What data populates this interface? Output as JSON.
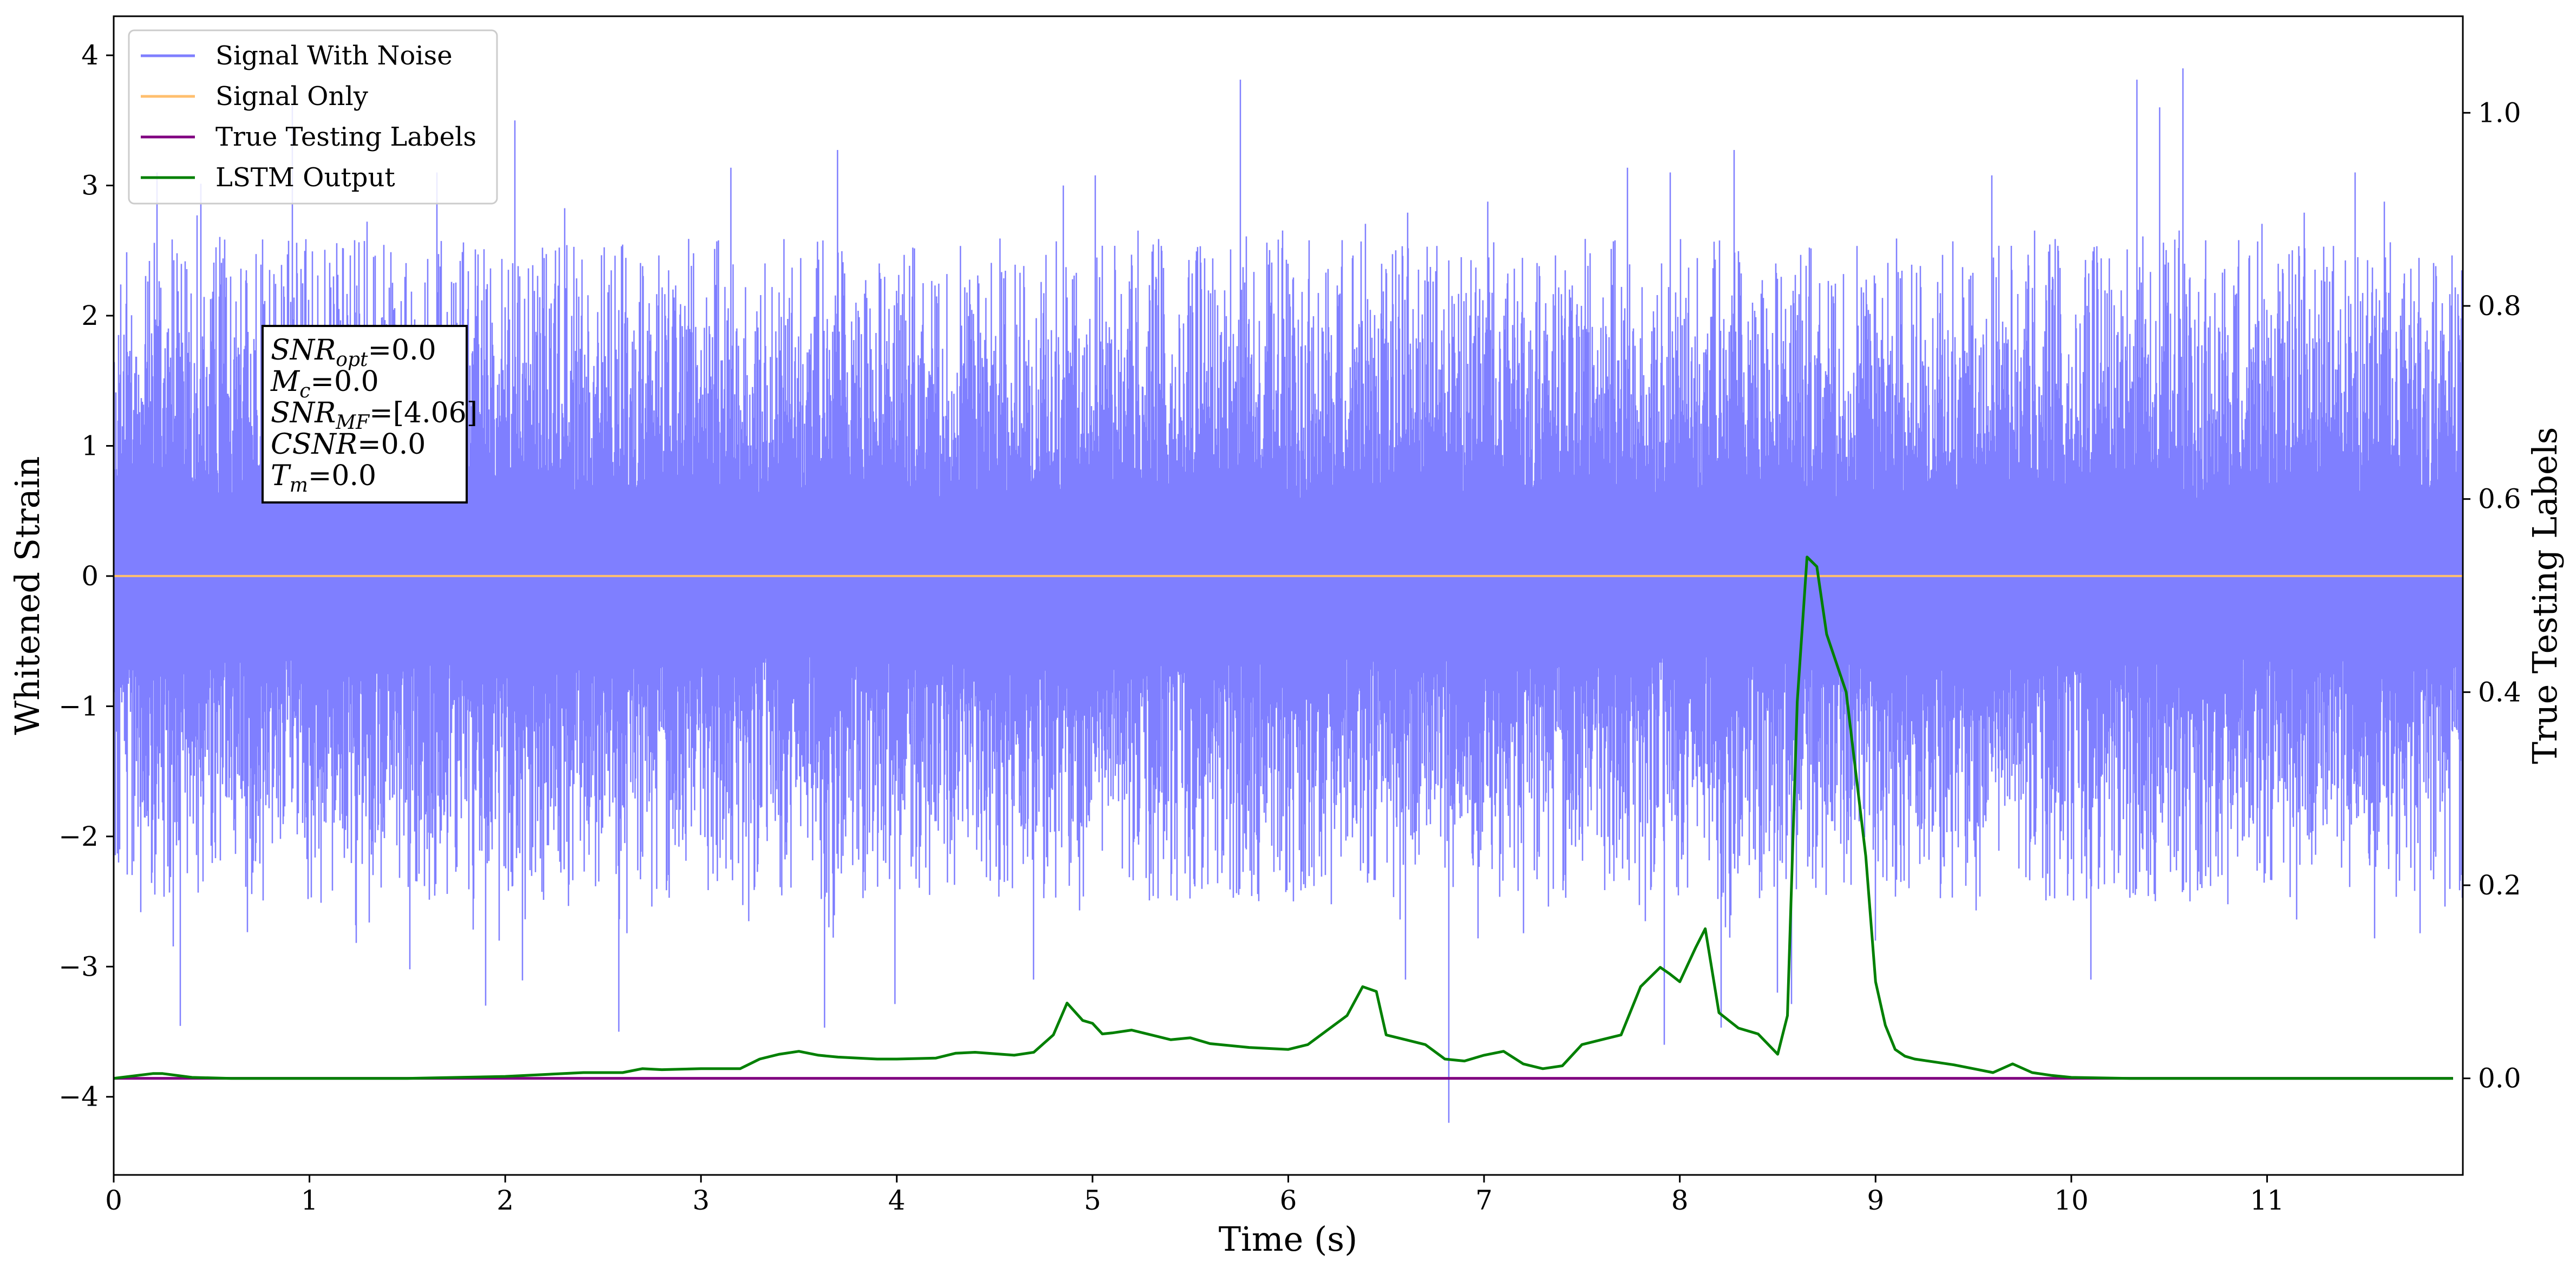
{
  "chart_data": {
    "type": "line",
    "xlabel": "Time (s)",
    "ylabel": "Whitened Strain",
    "ylabel_right": "True Testing Labels",
    "xlim": [
      0,
      12.0
    ],
    "ylim": [
      -4.6,
      4.3
    ],
    "ylim_right": [
      -0.1,
      1.1
    ],
    "x_ticks": [
      "0",
      "1",
      "2",
      "3",
      "4",
      "5",
      "6",
      "7",
      "8",
      "9",
      "10",
      "11"
    ],
    "y_ticks": [
      "4",
      "3",
      "2",
      "1",
      "0",
      "−1",
      "−2",
      "−3",
      "−4"
    ],
    "y_ticks_right": [
      "1.0",
      "0.8",
      "0.6",
      "0.4",
      "0.2",
      "0.0"
    ],
    "legend_position": "top-left",
    "grid": false,
    "series": [
      {
        "name": "Signal With Noise",
        "axis": "left",
        "color": "#7f7fff",
        "description_values": "noise band approx -1.5..1.5 with spikes up to ~3.9 and down to ~-4.2",
        "spike_peaks": [
          {
            "x": 0.22,
            "y": 3.1
          },
          {
            "x": 1.65,
            "y": 3.1
          },
          {
            "x": 2.05,
            "y": 3.5
          },
          {
            "x": 4.85,
            "y": 3.0
          },
          {
            "x": 7.95,
            "y": 3.1
          },
          {
            "x": 10.45,
            "y": 3.6
          },
          {
            "x": 10.57,
            "y": 3.9
          },
          {
            "x": 11.45,
            "y": 3.1
          }
        ],
        "spike_troughs": [
          {
            "x": 1.9,
            "y": -3.3
          },
          {
            "x": 2.58,
            "y": -3.5
          },
          {
            "x": 4.7,
            "y": -3.1
          },
          {
            "x": 6.6,
            "y": -3.1
          },
          {
            "x": 6.82,
            "y": -4.2
          },
          {
            "x": 7.92,
            "y": -3.6
          },
          {
            "x": 8.5,
            "y": -3.2
          },
          {
            "x": 9.0,
            "y": -2.8
          },
          {
            "x": 10.1,
            "y": -3.1
          }
        ]
      },
      {
        "name": "Signal Only",
        "axis": "left",
        "color": "#ffbf6e",
        "x": [
          0,
          12.0
        ],
        "y": [
          0,
          0
        ]
      },
      {
        "name": "True Testing Labels",
        "axis": "right",
        "color": "#800080",
        "x": [
          0,
          11.95
        ],
        "y": [
          0,
          0
        ]
      },
      {
        "name": "LSTM Output",
        "axis": "right",
        "color": "#008000",
        "x": [
          0,
          0.2,
          0.25,
          0.4,
          0.6,
          1.0,
          1.5,
          2.0,
          2.3,
          2.4,
          2.6,
          2.7,
          2.8,
          3.0,
          3.2,
          3.3,
          3.4,
          3.5,
          3.6,
          3.7,
          3.9,
          4.0,
          4.2,
          4.3,
          4.4,
          4.6,
          4.7,
          4.8,
          4.87,
          4.95,
          5.0,
          5.05,
          5.1,
          5.2,
          5.4,
          5.5,
          5.6,
          5.8,
          6.0,
          6.1,
          6.2,
          6.3,
          6.38,
          6.45,
          6.5,
          6.6,
          6.7,
          6.8,
          6.9,
          7.0,
          7.1,
          7.2,
          7.3,
          7.4,
          7.5,
          7.6,
          7.7,
          7.8,
          7.9,
          7.95,
          8.0,
          8.08,
          8.13,
          8.2,
          8.3,
          8.4,
          8.5,
          8.55,
          8.6,
          8.65,
          8.7,
          8.75,
          8.85,
          8.95,
          9.0,
          9.05,
          9.1,
          9.15,
          9.2,
          9.3,
          9.4,
          9.5,
          9.6,
          9.7,
          9.8,
          9.9,
          10.0,
          10.3,
          10.6,
          11.0,
          11.5,
          11.95
        ],
        "y": [
          0.0,
          0.005,
          0.005,
          0.001,
          0.0,
          0.0,
          0.0,
          0.002,
          0.005,
          0.006,
          0.006,
          0.01,
          0.009,
          0.01,
          0.01,
          0.02,
          0.025,
          0.028,
          0.024,
          0.022,
          0.02,
          0.02,
          0.021,
          0.026,
          0.027,
          0.024,
          0.027,
          0.045,
          0.078,
          0.06,
          0.057,
          0.046,
          0.047,
          0.05,
          0.04,
          0.042,
          0.036,
          0.032,
          0.03,
          0.035,
          0.05,
          0.065,
          0.095,
          0.09,
          0.045,
          0.04,
          0.035,
          0.02,
          0.018,
          0.024,
          0.028,
          0.015,
          0.01,
          0.013,
          0.035,
          0.04,
          0.045,
          0.095,
          0.115,
          0.108,
          0.1,
          0.135,
          0.155,
          0.068,
          0.052,
          0.046,
          0.025,
          0.065,
          0.39,
          0.54,
          0.53,
          0.46,
          0.4,
          0.23,
          0.1,
          0.055,
          0.03,
          0.023,
          0.02,
          0.017,
          0.014,
          0.01,
          0.006,
          0.015,
          0.006,
          0.003,
          0.001,
          0.0,
          0.0,
          0.0,
          0.0,
          0.0
        ]
      }
    ]
  },
  "annotation": {
    "lines": [
      {
        "base": "SNR",
        "sub": "opt",
        "value": "=0.0"
      },
      {
        "base": "M",
        "sub": "c",
        "value": "=0.0"
      },
      {
        "base": "SNR",
        "sub": "MF",
        "value": "=[4.06]"
      },
      {
        "base": "CSNR",
        "sub": "",
        "value": "=0.0"
      },
      {
        "base": "T",
        "sub": "m",
        "value": "=0.0"
      }
    ]
  }
}
